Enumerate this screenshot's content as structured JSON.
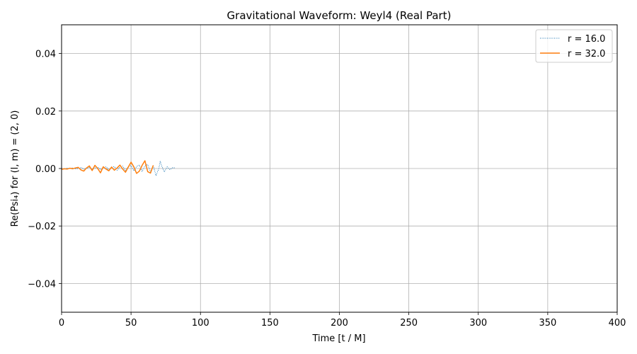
{
  "chart_data": {
    "type": "line",
    "title": "Gravitational Waveform: Weyl4 (Real Part)",
    "xlabel": "Time [t / M]",
    "ylabel": "Re(Psi₄) for (l, m) = (2, 0)",
    "xlim": [
      0,
      400
    ],
    "ylim": [
      -0.05,
      0.05
    ],
    "xticks": [
      0,
      50,
      100,
      150,
      200,
      250,
      300,
      350,
      400
    ],
    "yticks": [
      -0.04,
      -0.02,
      0.0,
      0.02,
      0.04
    ],
    "xtick_labels": [
      "0",
      "50",
      "100",
      "150",
      "200",
      "250",
      "300",
      "350",
      "400"
    ],
    "ytick_labels": [
      "−0.04",
      "−0.02",
      "0.00",
      "0.02",
      "0.04"
    ],
    "grid": true,
    "legend_position": "top-right",
    "series": [
      {
        "name": "r = 16.0",
        "color": "#1f77b4",
        "style": "dotted",
        "x": [
          0,
          2,
          4,
          6,
          8,
          10,
          12,
          14,
          16,
          18,
          20,
          22,
          24,
          26,
          28,
          30,
          32,
          34,
          36,
          38,
          40,
          42,
          44,
          46,
          48,
          50,
          52,
          54,
          56,
          58,
          60,
          62,
          64,
          66,
          68,
          70,
          71,
          72,
          74,
          76,
          78,
          80,
          82
        ],
        "y": [
          0.0,
          -0.0002,
          0.0001,
          0.0,
          0.0002,
          -0.0001,
          0.0,
          0.0003,
          -0.0002,
          0.0001,
          0.0004,
          -0.0003,
          0.0002,
          0.0005,
          -0.0004,
          0.0003,
          0.0006,
          -0.0005,
          0.0004,
          0.0007,
          -0.0006,
          0.0005,
          0.0008,
          -0.0007,
          0.0006,
          0.001,
          -0.0008,
          0.0007,
          0.0012,
          -0.001,
          0.0009,
          0.0014,
          -0.0012,
          0.001,
          -0.0025,
          0.0,
          0.0025,
          0.001,
          -0.0012,
          0.0006,
          -0.0004,
          0.0003,
          0.0002
        ]
      },
      {
        "name": "r = 32.0",
        "color": "#ff7f0e",
        "style": "solid",
        "x": [
          0,
          2,
          4,
          6,
          8,
          10,
          12,
          14,
          16,
          18,
          20,
          22,
          24,
          26,
          28,
          30,
          32,
          34,
          36,
          38,
          40,
          42,
          44,
          46,
          48,
          50,
          52,
          54,
          56,
          58,
          60,
          62,
          64,
          66
        ],
        "y": [
          -0.0003,
          -0.0001,
          -0.0002,
          0.0001,
          -0.0001,
          0.0002,
          0.0004,
          -0.0005,
          -0.0009,
          0.0002,
          0.0009,
          -0.0007,
          0.0011,
          0.0,
          -0.0015,
          0.0006,
          -0.0002,
          -0.0008,
          0.0005,
          -0.0006,
          0.0002,
          0.0012,
          -0.0002,
          -0.0013,
          0.0005,
          0.0022,
          0.0006,
          -0.0017,
          -0.0009,
          0.0011,
          0.0027,
          -0.0011,
          -0.0016,
          0.0011
        ]
      }
    ]
  }
}
